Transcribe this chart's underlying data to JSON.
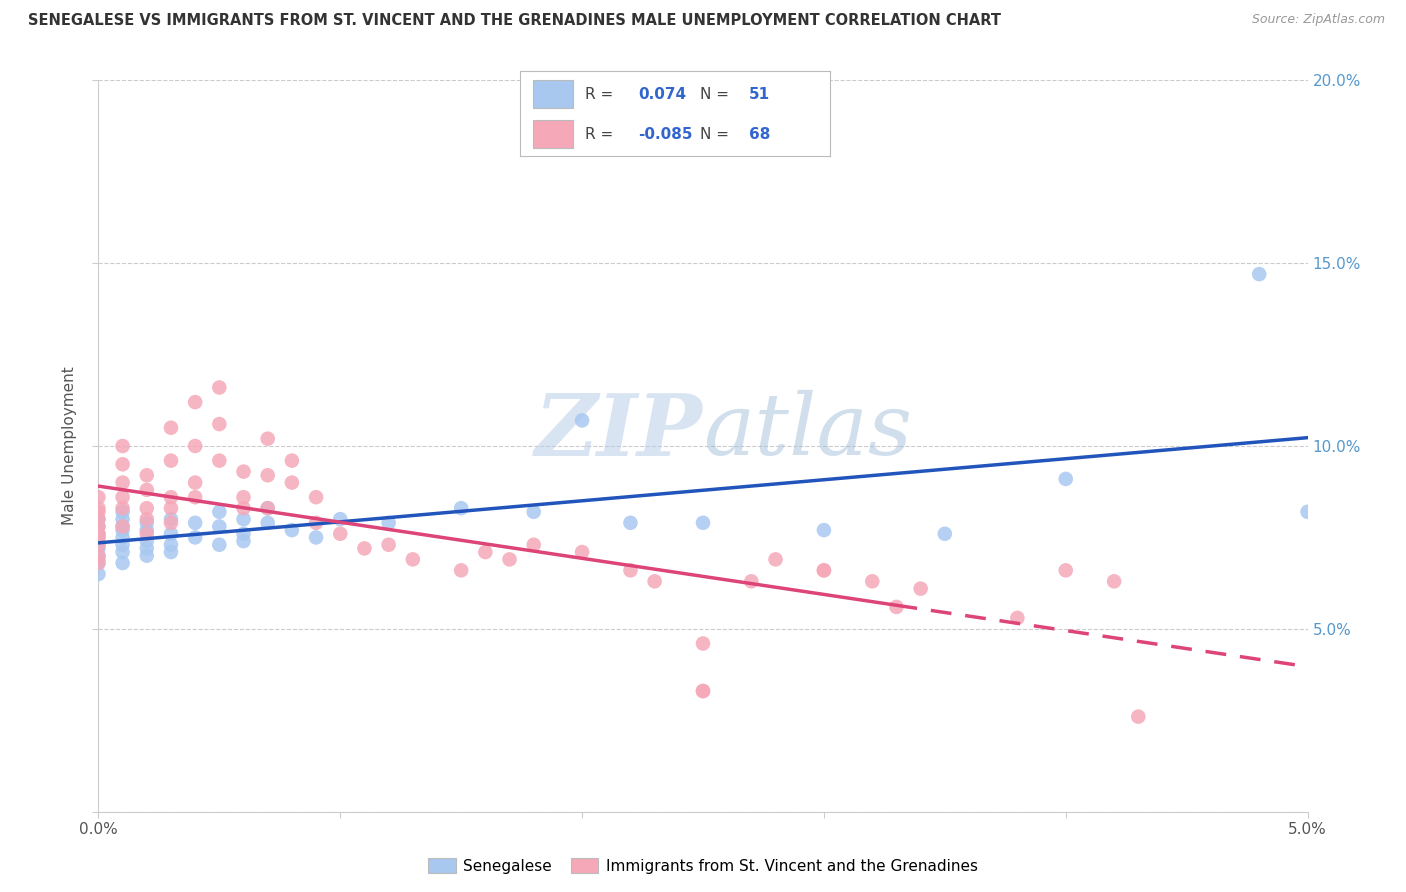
{
  "title": "SENEGALESE VS IMMIGRANTS FROM ST. VINCENT AND THE GRENADINES MALE UNEMPLOYMENT CORRELATION CHART",
  "source": "Source: ZipAtlas.com",
  "ylabel": "Male Unemployment",
  "blue_R": 0.074,
  "blue_N": 51,
  "pink_R": -0.085,
  "pink_N": 68,
  "xlim": [
    0.0,
    0.05
  ],
  "ylim": [
    0.0,
    0.2
  ],
  "blue_color": "#a8c8f0",
  "pink_color": "#f5a8b8",
  "blue_line_color": "#2255bb",
  "pink_line_color": "#dd4477",
  "watermark_zip": "ZIP",
  "watermark_atlas": "atlas",
  "legend_label_blue": "Senegalese",
  "legend_label_pink": "Immigrants from St. Vincent and the Grenadines",
  "blue_scatter_x": [
    0.0,
    0.0,
    0.0,
    0.0,
    0.0,
    0.0,
    0.0,
    0.0,
    0.0,
    0.0,
    0.001,
    0.001,
    0.001,
    0.001,
    0.001,
    0.001,
    0.001,
    0.001,
    0.002,
    0.002,
    0.002,
    0.002,
    0.002,
    0.003,
    0.003,
    0.003,
    0.003,
    0.004,
    0.004,
    0.005,
    0.005,
    0.005,
    0.006,
    0.006,
    0.006,
    0.007,
    0.007,
    0.008,
    0.009,
    0.01,
    0.012,
    0.015,
    0.018,
    0.02,
    0.022,
    0.025,
    0.03,
    0.035,
    0.04,
    0.048,
    0.05
  ],
  "blue_scatter_y": [
    0.073,
    0.068,
    0.08,
    0.075,
    0.07,
    0.065,
    0.078,
    0.072,
    0.076,
    0.069,
    0.082,
    0.078,
    0.075,
    0.071,
    0.068,
    0.073,
    0.077,
    0.08,
    0.079,
    0.074,
    0.072,
    0.07,
    0.077,
    0.08,
    0.076,
    0.073,
    0.071,
    0.075,
    0.079,
    0.073,
    0.078,
    0.082,
    0.076,
    0.08,
    0.074,
    0.079,
    0.083,
    0.077,
    0.075,
    0.08,
    0.079,
    0.083,
    0.082,
    0.107,
    0.079,
    0.079,
    0.077,
    0.076,
    0.091,
    0.147,
    0.082
  ],
  "pink_scatter_x": [
    0.0,
    0.0,
    0.0,
    0.0,
    0.0,
    0.0,
    0.0,
    0.0,
    0.0,
    0.0,
    0.001,
    0.001,
    0.001,
    0.001,
    0.001,
    0.001,
    0.002,
    0.002,
    0.002,
    0.002,
    0.002,
    0.003,
    0.003,
    0.003,
    0.003,
    0.003,
    0.004,
    0.004,
    0.004,
    0.004,
    0.005,
    0.005,
    0.005,
    0.006,
    0.006,
    0.006,
    0.007,
    0.007,
    0.007,
    0.008,
    0.008,
    0.009,
    0.009,
    0.01,
    0.011,
    0.012,
    0.013,
    0.015,
    0.016,
    0.017,
    0.018,
    0.02,
    0.022,
    0.023,
    0.025,
    0.027,
    0.028,
    0.03,
    0.032,
    0.034,
    0.025,
    0.025,
    0.03,
    0.033,
    0.038,
    0.04,
    0.042,
    0.043
  ],
  "pink_scatter_y": [
    0.078,
    0.082,
    0.086,
    0.075,
    0.073,
    0.07,
    0.076,
    0.068,
    0.08,
    0.083,
    0.09,
    0.086,
    0.095,
    0.1,
    0.078,
    0.083,
    0.092,
    0.088,
    0.083,
    0.076,
    0.08,
    0.105,
    0.096,
    0.086,
    0.079,
    0.083,
    0.112,
    0.1,
    0.09,
    0.086,
    0.116,
    0.106,
    0.096,
    0.093,
    0.086,
    0.083,
    0.102,
    0.092,
    0.083,
    0.096,
    0.09,
    0.086,
    0.079,
    0.076,
    0.072,
    0.073,
    0.069,
    0.066,
    0.071,
    0.069,
    0.073,
    0.071,
    0.066,
    0.063,
    0.046,
    0.063,
    0.069,
    0.066,
    0.063,
    0.061,
    0.033,
    0.033,
    0.066,
    0.056,
    0.053,
    0.066,
    0.063,
    0.026
  ]
}
